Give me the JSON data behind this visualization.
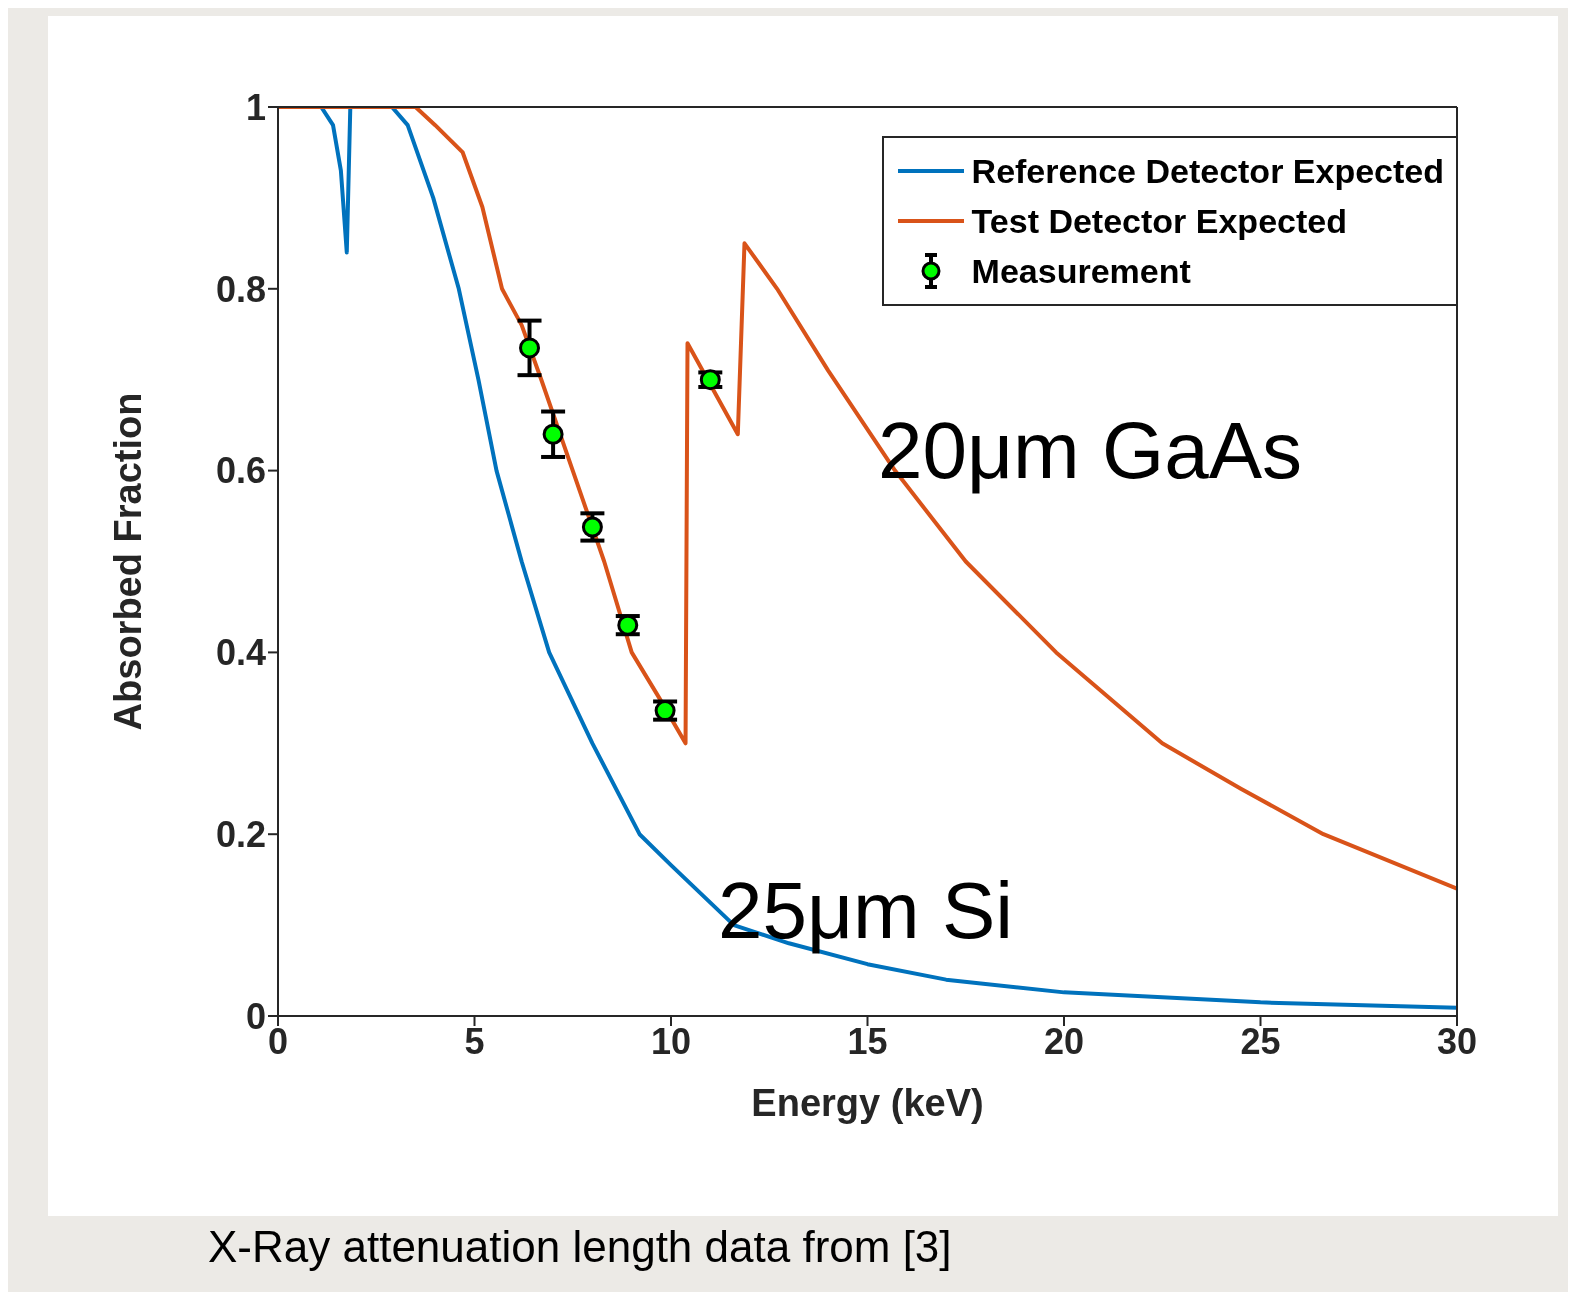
{
  "chart_data": {
    "type": "line",
    "xlabel": "Energy (keV)",
    "ylabel": "Absorbed Fraction",
    "xlim": [
      0,
      30
    ],
    "ylim": [
      0,
      1
    ],
    "xticks": [
      0,
      5,
      10,
      15,
      20,
      25,
      30
    ],
    "yticks": [
      0,
      0.2,
      0.4,
      0.6,
      0.8,
      1
    ],
    "grid": false,
    "legend": "top right",
    "series": [
      {
        "name": "Reference Detector Expected",
        "color": "#0072bd",
        "marker": "none",
        "x": [
          0,
          1.1,
          1.4,
          1.6,
          1.75,
          1.84,
          2.9,
          3.3,
          3.95,
          4.6,
          5.1,
          5.56,
          6.2,
          6.9,
          8.0,
          9.2,
          10,
          11.6,
          13,
          15,
          17,
          20,
          25,
          30
        ],
        "values": [
          1,
          1,
          0.98,
          0.93,
          0.84,
          1,
          1,
          0.98,
          0.9,
          0.8,
          0.7,
          0.6,
          0.5,
          0.4,
          0.3,
          0.2,
          0.166,
          0.1,
          0.08,
          0.057,
          0.04,
          0.026,
          0.015,
          0.009
        ]
      },
      {
        "name": "Test Detector Expected",
        "color": "#d95319",
        "marker": "none",
        "x": [
          0,
          3.5,
          4.0,
          4.7,
          5.2,
          5.7,
          6.2,
          6.7,
          7.5,
          8.3,
          9.0,
          9.7,
          10.37,
          10.42,
          11.7,
          11.87,
          12.7,
          14,
          15.7,
          17.5,
          19.8,
          22.5,
          24.5,
          26.6,
          30
        ],
        "values": [
          1,
          1,
          0.98,
          0.95,
          0.89,
          0.8,
          0.76,
          0.7,
          0.6,
          0.5,
          0.4,
          0.35,
          0.3,
          0.74,
          0.64,
          0.85,
          0.8,
          0.71,
          0.6,
          0.5,
          0.4,
          0.3,
          0.25,
          0.2,
          0.14
        ]
      },
      {
        "name": "Measurement",
        "color": "#00ff00",
        "type": "scatter",
        "marker": "circle",
        "x": [
          6.4,
          7.0,
          8.0,
          8.9,
          9.85,
          11.0
        ],
        "values": [
          0.735,
          0.64,
          0.538,
          0.43,
          0.336,
          0.7
        ],
        "errors": [
          0.03,
          0.025,
          0.015,
          0.01,
          0.01,
          0.008
        ]
      }
    ],
    "annotations": [
      "20μm GaAs",
      "25μm Si",
      "X-Ray attenuation length data from [3]"
    ]
  }
}
